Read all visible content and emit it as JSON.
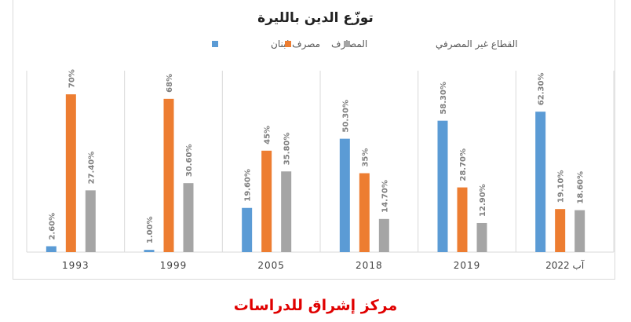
{
  "chart_data": {
    "type": "bar",
    "title": "توزّع الدين بالليرة",
    "categories": [
      "1993",
      "1999",
      "2005",
      "2018",
      "2019",
      "آب 2022"
    ],
    "series": [
      {
        "name": "مصرف لبنان",
        "color": "#5b9bd5",
        "values": [
          2.6,
          1.0,
          19.6,
          50.3,
          58.3,
          62.3
        ],
        "labels": [
          "2.60%",
          "1.00%",
          "19.60%",
          "50.30%",
          "58.30%",
          "62.30%"
        ]
      },
      {
        "name": "المصارف",
        "color": "#ed7d31",
        "values": [
          70,
          68,
          45,
          35,
          28.7,
          19.1
        ],
        "labels": [
          "70%",
          "68%",
          "45%",
          "35%",
          "28.70%",
          "19.10%"
        ]
      },
      {
        "name": "القطاع غير المصرفي",
        "color": "#a5a5a5",
        "values": [
          27.4,
          30.6,
          35.8,
          14.7,
          12.9,
          18.6
        ],
        "labels": [
          "27.40%",
          "30.60%",
          "35.80%",
          "14.70%",
          "12.90%",
          "18.60%"
        ]
      }
    ],
    "ylim": [
      0,
      80
    ],
    "grid": "vertical-category-separators",
    "legend": "top-right"
  },
  "footer": {
    "text": "مركز إشراق للدراسات"
  }
}
